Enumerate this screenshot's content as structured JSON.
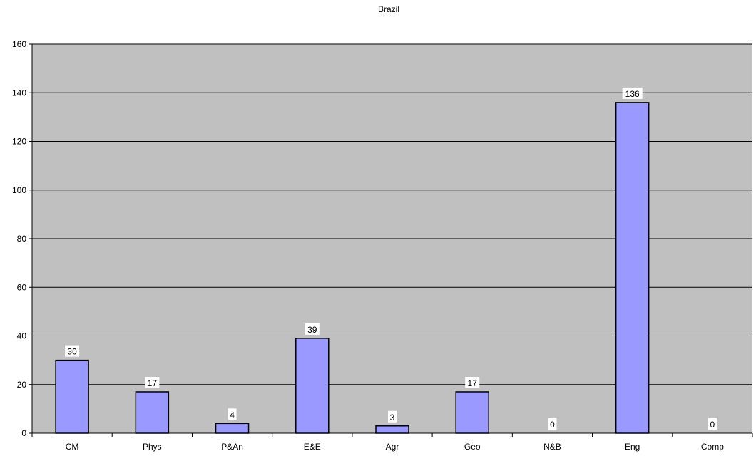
{
  "chart_data": {
    "type": "bar",
    "title": "Brazil",
    "xlabel": "",
    "ylabel": "",
    "categories": [
      "CM",
      "Phys",
      "P&An",
      "E&E",
      "Agr",
      "Geo",
      "N&B",
      "Eng",
      "Comp"
    ],
    "values": [
      30,
      17,
      4,
      39,
      3,
      17,
      0,
      136,
      0
    ],
    "data_labels": [
      "30",
      "17",
      "4",
      "39",
      "3",
      "17",
      "0",
      "136",
      "0"
    ],
    "ylim": [
      0,
      160
    ],
    "yticks": [
      0,
      20,
      40,
      60,
      80,
      100,
      120,
      140,
      160
    ],
    "ytick_labels": [
      "0",
      "20",
      "40",
      "60",
      "80",
      "100",
      "120",
      "140",
      "160"
    ],
    "grid": true,
    "legend": "none",
    "colors": {
      "plot_background": "#c0c0c0",
      "bar_fill": "#9999ff",
      "bar_stroke": "#000000",
      "gridline": "#000000",
      "data_label_background": "#ffffff"
    }
  }
}
